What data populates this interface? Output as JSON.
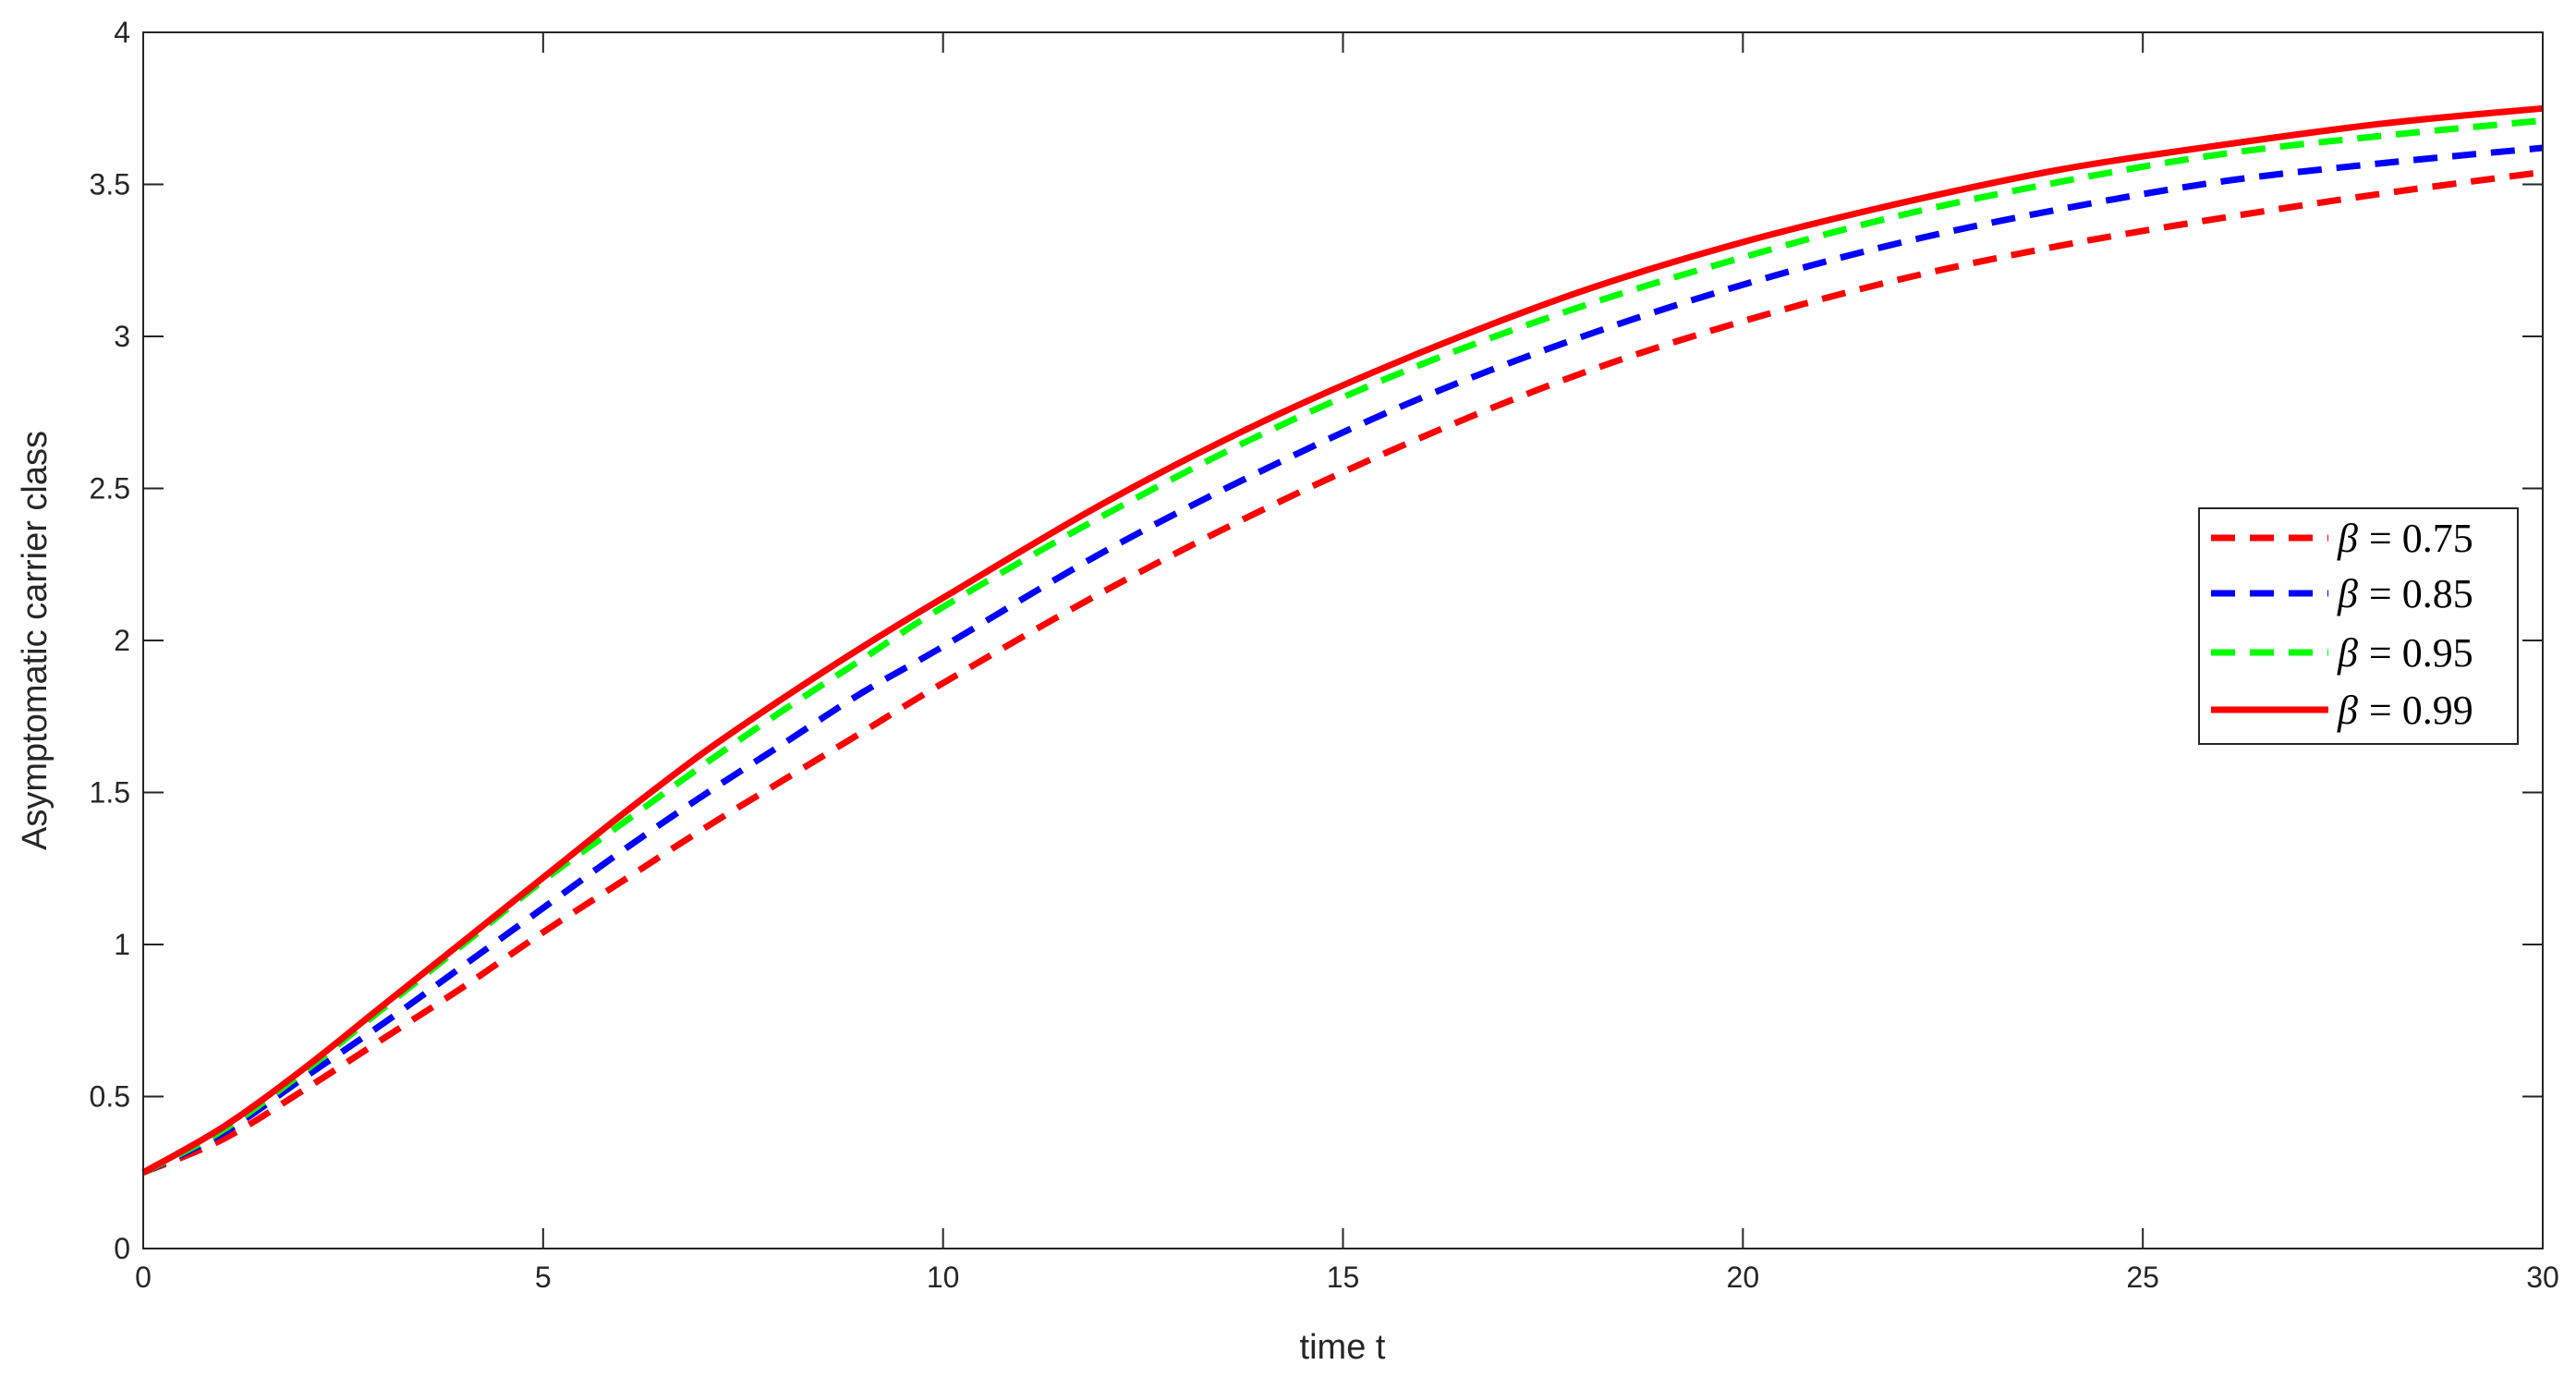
{
  "chart_data": {
    "type": "line",
    "xlabel": "time t",
    "ylabel": "Asymptomatic carrier  class",
    "xlim": [
      0,
      30
    ],
    "ylim": [
      0,
      4
    ],
    "xticks": [
      "0",
      "5",
      "10",
      "15",
      "20",
      "25",
      "30"
    ],
    "yticks": [
      "0",
      "0.5",
      "1",
      "1.5",
      "2",
      "2.5",
      "3",
      "3.5",
      "4"
    ],
    "grid": false,
    "legend_position": "right",
    "x": [
      0,
      1,
      2,
      3,
      4,
      5,
      6,
      7,
      8,
      9,
      10,
      12,
      14,
      16,
      18,
      20,
      22,
      24,
      26,
      28,
      30
    ],
    "series": [
      {
        "name": "β = 0.75",
        "legend_beta": "β",
        "legend_value": "= 0.75",
        "color": "#ff0000",
        "style": "dashed",
        "values": [
          0.25,
          0.36,
          0.52,
          0.69,
          0.86,
          1.04,
          1.21,
          1.38,
          1.54,
          1.7,
          1.86,
          2.16,
          2.43,
          2.67,
          2.88,
          3.05,
          3.19,
          3.3,
          3.39,
          3.47,
          3.54
        ]
      },
      {
        "name": "β = 0.85",
        "legend_beta": "β",
        "legend_value": "= 0.85",
        "color": "#0000ff",
        "style": "dashed",
        "values": [
          0.25,
          0.38,
          0.56,
          0.74,
          0.93,
          1.12,
          1.31,
          1.49,
          1.66,
          1.83,
          1.98,
          2.29,
          2.56,
          2.8,
          3.0,
          3.17,
          3.31,
          3.42,
          3.51,
          3.57,
          3.62
        ]
      },
      {
        "name": "β = 0.95",
        "legend_beta": "β",
        "legend_value": "= 0.95",
        "color": "#00ff00",
        "style": "dashed",
        "values": [
          0.25,
          0.39,
          0.58,
          0.79,
          1.0,
          1.21,
          1.4,
          1.59,
          1.77,
          1.94,
          2.11,
          2.41,
          2.68,
          2.91,
          3.1,
          3.26,
          3.4,
          3.51,
          3.6,
          3.66,
          3.71
        ]
      },
      {
        "name": "β = 0.99",
        "legend_beta": "β",
        "legend_value": "= 0.99",
        "color": "#ff0000",
        "style": "solid",
        "values": [
          0.25,
          0.4,
          0.59,
          0.8,
          1.01,
          1.22,
          1.43,
          1.63,
          1.81,
          1.98,
          2.14,
          2.45,
          2.72,
          2.95,
          3.15,
          3.31,
          3.44,
          3.55,
          3.63,
          3.7,
          3.75
        ]
      }
    ]
  }
}
